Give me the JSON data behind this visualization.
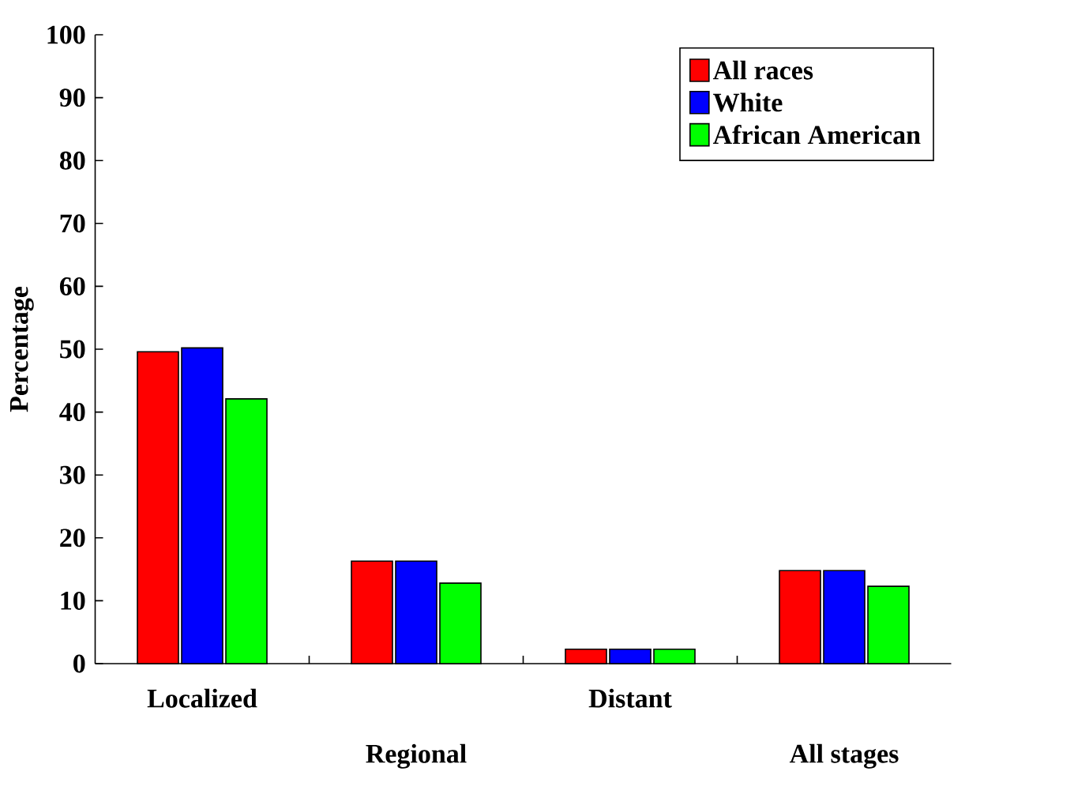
{
  "chart_data": {
    "type": "bar",
    "ylabel": "Percentage",
    "categories": [
      "Localized",
      "Regional",
      "Distant",
      "All stages"
    ],
    "series": [
      {
        "name": "All races",
        "color": "#ff0000",
        "values": [
          49.6,
          16.3,
          2.3,
          14.8
        ]
      },
      {
        "name": "White",
        "color": "#0000ff",
        "values": [
          50.2,
          16.3,
          2.3,
          14.8
        ]
      },
      {
        "name": "African American",
        "color": "#00ff00",
        "values": [
          42.1,
          12.8,
          2.3,
          12.3
        ]
      }
    ],
    "ylim": [
      0,
      100
    ],
    "yticks": [
      0,
      10,
      20,
      30,
      40,
      50,
      60,
      70,
      80,
      90,
      100
    ],
    "grid": false,
    "legend": "top right"
  }
}
